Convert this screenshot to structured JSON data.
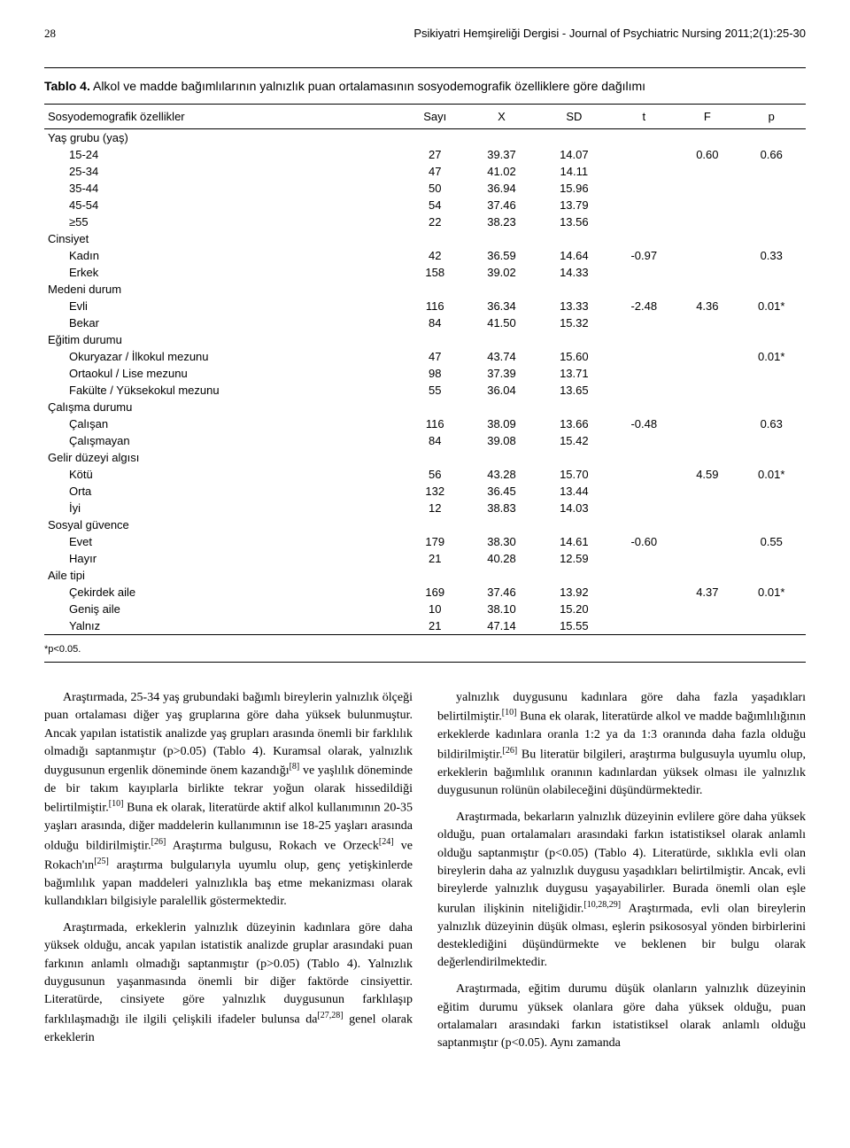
{
  "page_number": "28",
  "journal_title": "Psikiyatri Hemşireliği Dergisi - Journal of Psychiatric Nursing 2011;2(1):25-30",
  "table": {
    "label": "Tablo 4.",
    "caption": "Alkol ve madde bağımlılarının yalnızlık puan ortalamasının sosyodemografik özelliklere göre dağılımı",
    "columns": [
      "Sosyodemografik özellikler",
      "Sayı",
      "X",
      "SD",
      "t",
      "F",
      "p"
    ],
    "footnote": "*p<0.05.",
    "font_family": "Arial",
    "header_fontsize": 13,
    "cell_fontsize": 13,
    "border_color": "#000000",
    "col_widths_pct": [
      40,
      10,
      10,
      10,
      10,
      10,
      10
    ],
    "sections": [
      {
        "head": "Yaş grubu (yaş)",
        "rows": [
          {
            "label": "15-24",
            "n": "27",
            "x": "39.37",
            "sd": "14.07",
            "t": "",
            "f": "0.60",
            "p": "0.66"
          },
          {
            "label": "25-34",
            "n": "47",
            "x": "41.02",
            "sd": "14.11",
            "t": "",
            "f": "",
            "p": ""
          },
          {
            "label": "35-44",
            "n": "50",
            "x": "36.94",
            "sd": "15.96",
            "t": "",
            "f": "",
            "p": ""
          },
          {
            "label": "45-54",
            "n": "54",
            "x": "37.46",
            "sd": "13.79",
            "t": "",
            "f": "",
            "p": ""
          },
          {
            "label": "≥55",
            "n": "22",
            "x": "38.23",
            "sd": "13.56",
            "t": "",
            "f": "",
            "p": ""
          }
        ]
      },
      {
        "head": "Cinsiyet",
        "rows": [
          {
            "label": "Kadın",
            "n": "42",
            "x": "36.59",
            "sd": "14.64",
            "t": "-0.97",
            "f": "",
            "p": "0.33"
          },
          {
            "label": "Erkek",
            "n": "158",
            "x": "39.02",
            "sd": "14.33",
            "t": "",
            "f": "",
            "p": ""
          }
        ]
      },
      {
        "head": "Medeni durum",
        "rows": [
          {
            "label": "Evli",
            "n": "116",
            "x": "36.34",
            "sd": "13.33",
            "t": "-2.48",
            "f": "4.36",
            "p": "0.01*"
          },
          {
            "label": "Bekar",
            "n": "84",
            "x": "41.50",
            "sd": "15.32",
            "t": "",
            "f": "",
            "p": ""
          }
        ]
      },
      {
        "head": "Eğitim durumu",
        "rows": [
          {
            "label": "Okuryazar / İlkokul mezunu",
            "n": "47",
            "x": "43.74",
            "sd": "15.60",
            "t": "",
            "f": "",
            "p": "0.01*"
          },
          {
            "label": "Ortaokul / Lise mezunu",
            "n": "98",
            "x": "37.39",
            "sd": "13.71",
            "t": "",
            "f": "",
            "p": ""
          },
          {
            "label": "Fakülte / Yüksekokul mezunu",
            "n": "55",
            "x": "36.04",
            "sd": "13.65",
            "t": "",
            "f": "",
            "p": ""
          }
        ]
      },
      {
        "head": "Çalışma durumu",
        "rows": [
          {
            "label": "Çalışan",
            "n": "116",
            "x": "38.09",
            "sd": "13.66",
            "t": "-0.48",
            "f": "",
            "p": "0.63"
          },
          {
            "label": "Çalışmayan",
            "n": "84",
            "x": "39.08",
            "sd": "15.42",
            "t": "",
            "f": "",
            "p": ""
          }
        ]
      },
      {
        "head": "Gelir düzeyi algısı",
        "rows": [
          {
            "label": "Kötü",
            "n": "56",
            "x": "43.28",
            "sd": "15.70",
            "t": "",
            "f": "4.59",
            "p": "0.01*"
          },
          {
            "label": "Orta",
            "n": "132",
            "x": "36.45",
            "sd": "13.44",
            "t": "",
            "f": "",
            "p": ""
          },
          {
            "label": "İyi",
            "n": "12",
            "x": "38.83",
            "sd": "14.03",
            "t": "",
            "f": "",
            "p": ""
          }
        ]
      },
      {
        "head": "Sosyal güvence",
        "rows": [
          {
            "label": "Evet",
            "n": "179",
            "x": "38.30",
            "sd": "14.61",
            "t": "-0.60",
            "f": "",
            "p": "0.55"
          },
          {
            "label": "Hayır",
            "n": "21",
            "x": "40.28",
            "sd": "12.59",
            "t": "",
            "f": "",
            "p": ""
          }
        ]
      },
      {
        "head": "Aile tipi",
        "rows": [
          {
            "label": "Çekirdek aile",
            "n": "169",
            "x": "37.46",
            "sd": "13.92",
            "t": "",
            "f": "4.37",
            "p": "0.01*"
          },
          {
            "label": "Geniş aile",
            "n": "10",
            "x": "38.10",
            "sd": "15.20",
            "t": "",
            "f": "",
            "p": ""
          },
          {
            "label": "Yalnız",
            "n": "21",
            "x": "47.14",
            "sd": "15.55",
            "t": "",
            "f": "",
            "p": ""
          }
        ]
      }
    ]
  },
  "body": {
    "fontsize": 14,
    "line_height": 1.45,
    "text_color": "#000000",
    "left_col": [
      "Araştırmada, 25-34 yaş grubundaki bağımlı bireylerin yalnızlık ölçeği puan ortalaması diğer yaş gruplarına göre daha yüksek bulunmuştur. Ancak yapılan istatistik analizde yaş grupları arasında önemli bir farklılık olmadığı saptanmıştır (p>0.05) (Tablo 4). Kuramsal olarak, yalnızlık duygusunun ergenlik döneminde önem kazandığı[8] ve yaşlılık döneminde de bir takım kayıplarla birlikte tekrar yoğun olarak hissedildiği belirtilmiştir.[10] Buna ek olarak, literatürde aktif alkol kullanımının 20-35 yaşları arasında, diğer maddelerin kullanımının ise 18-25 yaşları arasında olduğu bildirilmiştir.[26] Araştırma bulgusu, Rokach ve Orzeck[24] ve Rokach'ın[25] araştırma bulgularıyla uyumlu olup, genç yetişkinlerde bağımlılık yapan maddeleri yalnızlıkla baş etme mekanizması olarak kullandıkları bilgisiyle paralellik göstermektedir.",
      "Araştırmada, erkeklerin yalnızlık düzeyinin kadınlara göre daha yüksek olduğu, ancak yapılan istatistik analizde gruplar arasındaki puan farkının anlamlı olmadığı saptanmıştır (p>0.05) (Tablo 4). Yalnızlık duygusunun yaşanmasında önemli bir diğer faktörde cinsiyettir. Literatürde, cinsiyete göre yalnızlık duygusunun farklılaşıp farklılaşmadığı ile ilgili çelişkili ifadeler bulunsa da[27,28] genel olarak erkeklerin"
    ],
    "right_col": [
      "yalnızlık duygusunu kadınlara göre daha fazla yaşadıkları belirtilmiştir.[10] Buna ek olarak, literatürde alkol ve madde bağımlılığının erkeklerde kadınlara oranla 1:2 ya da 1:3 oranında daha fazla olduğu bildirilmiştir.[26] Bu literatür bilgileri, araştırma bulgusuyla uyumlu olup, erkeklerin bağımlılık oranının kadınlardan yüksek olması ile yalnızlık duygusunun rolünün olabileceğini düşündürmektedir.",
      "Araştırmada, bekarların yalnızlık düzeyinin evlilere göre daha yüksek olduğu, puan ortalamaları arasındaki farkın istatistiksel olarak anlamlı olduğu saptanmıştır (p<0.05) (Tablo 4). Literatürde, sıklıkla evli olan bireylerin daha az yalnızlık duygusu yaşadıkları belirtilmiştir. Ancak, evli bireylerde yalnızlık duygusu yaşayabilirler. Burada önemli olan eşle kurulan ilişkinin niteliğidir.[10,28,29] Araştırmada, evli olan bireylerin yalnızlık düzeyinin düşük olması, eşlerin psikososyal yönden birbirlerini desteklediğini düşündürmekte ve beklenen bir bulgu olarak değerlendirilmektedir.",
      "Araştırmada, eğitim durumu düşük olanların yalnızlık düzeyinin eğitim durumu yüksek olanlara göre daha yüksek olduğu, puan ortalamaları arasındaki farkın istatistiksel olarak anlamlı olduğu saptanmıştır (p<0.05). Aynı zamanda"
    ]
  }
}
